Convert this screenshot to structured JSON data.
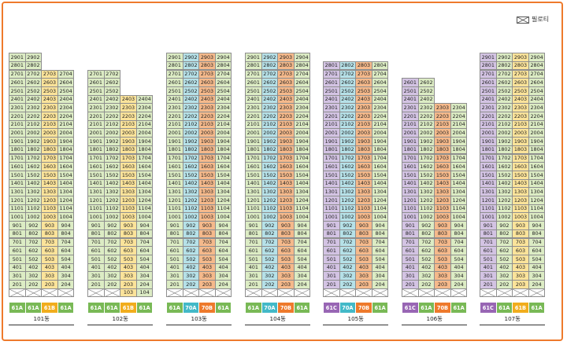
{
  "legend": {
    "label": "필로티"
  },
  "colors": {
    "A61": "#dcecc4",
    "B61": "#fbe39a",
    "A70": "#b6e1e8",
    "B70": "#f5b98b",
    "C61": "#d3c3e3",
    "A61_tag": "#79b956",
    "B61_tag": "#f1ad1d",
    "A70_tag": "#43b9c8",
    "B70_tag": "#ee7a2c",
    "C61_tag": "#9866b4",
    "border": "#ee7a2c"
  },
  "buildings": [
    {
      "name": "101동",
      "top_floors": [
        29,
        29,
        27,
        27
      ],
      "pilotis": [
        1,
        1,
        1,
        1
      ],
      "types": [
        "61A",
        "61A",
        "61B",
        "61A"
      ]
    },
    {
      "name": "102동",
      "top_floors": [
        27,
        27,
        24,
        24
      ],
      "pilotis": [
        1,
        1,
        0,
        0
      ],
      "types": [
        "61A",
        "61A",
        "61B",
        "61A"
      ]
    },
    {
      "name": "103동",
      "top_floors": [
        29,
        29,
        29,
        29
      ],
      "pilotis": [
        1,
        1,
        1,
        1
      ],
      "types": [
        "61A",
        "70A",
        "70B",
        "61A"
      ]
    },
    {
      "name": "104동",
      "top_floors": [
        29,
        29,
        29,
        29
      ],
      "pilotis": [
        1,
        1,
        1,
        1
      ],
      "types": [
        "61A",
        "70A",
        "70B",
        "61A"
      ]
    },
    {
      "name": "105동",
      "top_floors": [
        28,
        28,
        28,
        28
      ],
      "pilotis": [
        1,
        1,
        1,
        1
      ],
      "types": [
        "61C",
        "70A",
        "70B",
        "61A"
      ]
    },
    {
      "name": "106동",
      "top_floors": [
        26,
        26,
        23,
        23
      ],
      "pilotis": [
        1,
        1,
        1,
        1
      ],
      "types": [
        "61C",
        "61A",
        "70B",
        "61A"
      ]
    },
    {
      "name": "107동",
      "top_floors": [
        29,
        29,
        29,
        29
      ],
      "pilotis": [
        1,
        1,
        1,
        1
      ],
      "types": [
        "61C",
        "61A",
        "61B",
        "61A"
      ]
    }
  ]
}
